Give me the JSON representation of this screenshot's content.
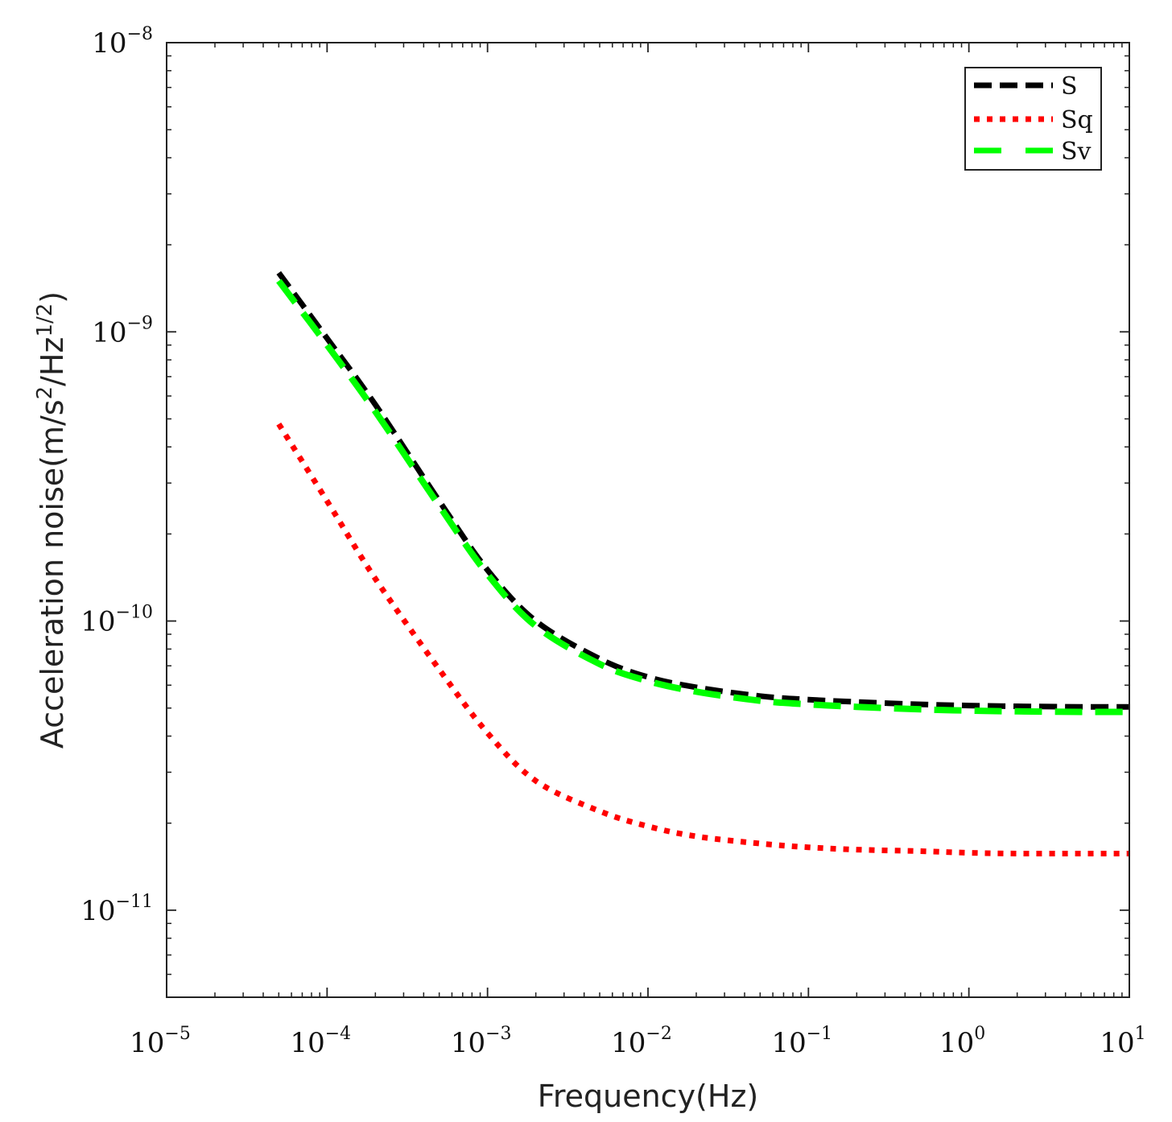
{
  "chart_data": {
    "type": "line",
    "xscale": "log",
    "yscale": "log",
    "xlabel": "Frequency(Hz)",
    "ylabel": "Acceleration noise(m/s",
    "ylabel_sup1": "2",
    "ylabel_mid": "/Hz",
    "ylabel_sup2": "1/2",
    "ylabel_end": ")",
    "xlim": [
      1e-05,
      10
    ],
    "ylim": [
      5e-12,
      1e-08
    ],
    "x_ticks": [
      {
        "value": 1e-05,
        "base": "10",
        "exp": "−5"
      },
      {
        "value": 0.0001,
        "base": "10",
        "exp": "−4"
      },
      {
        "value": 0.001,
        "base": "10",
        "exp": "−3"
      },
      {
        "value": 0.01,
        "base": "10",
        "exp": "−2"
      },
      {
        "value": 0.1,
        "base": "10",
        "exp": "−1"
      },
      {
        "value": 1,
        "base": "10",
        "exp": "0"
      },
      {
        "value": 10,
        "base": "10",
        "exp": "1"
      }
    ],
    "y_ticks": [
      {
        "value": 1e-11,
        "base": "10",
        "exp": "−11"
      },
      {
        "value": 1e-10,
        "base": "10",
        "exp": "−10"
      },
      {
        "value": 1e-09,
        "base": "10",
        "exp": "−9"
      },
      {
        "value": 1e-08,
        "base": "10",
        "exp": "−8"
      }
    ],
    "legend_position": "top-right",
    "series": [
      {
        "name": "S",
        "color": "#000000",
        "style": "dashed",
        "x": [
          5e-05,
          0.0001,
          0.0002,
          0.0005,
          0.001,
          0.002,
          0.005,
          0.01,
          0.02,
          0.05,
          0.1,
          0.2,
          0.5,
          1,
          2,
          5,
          10
        ],
        "y": [
          1.6e-09,
          9.5e-10,
          5.6e-10,
          2.6e-10,
          1.5e-10,
          1e-10,
          7.4e-11,
          6.4e-11,
          5.9e-11,
          5.5e-11,
          5.35e-11,
          5.25e-11,
          5.15e-11,
          5.1e-11,
          5.07e-11,
          5.05e-11,
          5.05e-11
        ]
      },
      {
        "name": "Sq",
        "color": "#ff0000",
        "style": "dotted",
        "x": [
          5e-05,
          0.0001,
          0.0002,
          0.0005,
          0.001,
          0.002,
          0.005,
          0.01,
          0.02,
          0.05,
          0.1,
          0.2,
          0.5,
          1,
          2,
          5,
          10
        ],
        "y": [
          4.8e-10,
          2.6e-10,
          1.4e-10,
          6.8e-11,
          4.1e-11,
          2.8e-11,
          2.2e-11,
          1.95e-11,
          1.8e-11,
          1.7e-11,
          1.65e-11,
          1.62e-11,
          1.6e-11,
          1.58e-11,
          1.57e-11,
          1.57e-11,
          1.57e-11
        ]
      },
      {
        "name": "Sv",
        "color": "#00ff00",
        "style": "dashed",
        "x": [
          5e-05,
          0.0001,
          0.0002,
          0.0005,
          0.001,
          0.002,
          0.005,
          0.01,
          0.02,
          0.05,
          0.1,
          0.2,
          0.5,
          1,
          2,
          5,
          10
        ],
        "y": [
          1.5e-09,
          9e-10,
          5.3e-10,
          2.5e-10,
          1.45e-10,
          9.6e-11,
          7.1e-11,
          6.2e-11,
          5.7e-11,
          5.3e-11,
          5.15e-11,
          5.05e-11,
          4.95e-11,
          4.9e-11,
          4.87e-11,
          4.85e-11,
          4.85e-11
        ]
      }
    ]
  }
}
